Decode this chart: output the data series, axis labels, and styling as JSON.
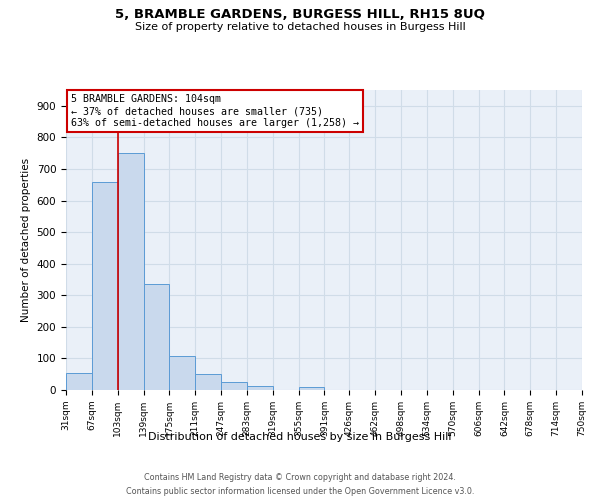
{
  "title": "5, BRAMBLE GARDENS, BURGESS HILL, RH15 8UQ",
  "subtitle": "Size of property relative to detached houses in Burgess Hill",
  "xlabel": "Distribution of detached houses by size in Burgess Hill",
  "ylabel": "Number of detached properties",
  "bar_heights": [
    55,
    660,
    750,
    335,
    108,
    52,
    25,
    12,
    0,
    8,
    0,
    0,
    0,
    0,
    0,
    0,
    0,
    0,
    0,
    0
  ],
  "bin_edges": [
    31,
    67,
    103,
    139,
    175,
    211,
    247,
    283,
    319,
    355,
    391,
    426,
    462,
    498,
    534,
    570,
    606,
    642,
    678,
    714,
    750
  ],
  "tick_labels": [
    "31sqm",
    "67sqm",
    "103sqm",
    "139sqm",
    "175sqm",
    "211sqm",
    "247sqm",
    "283sqm",
    "319sqm",
    "355sqm",
    "391sqm",
    "426sqm",
    "462sqm",
    "498sqm",
    "534sqm",
    "570sqm",
    "606sqm",
    "642sqm",
    "678sqm",
    "714sqm",
    "750sqm"
  ],
  "bar_color": "#c9d9ed",
  "bar_edge_color": "#5b9bd5",
  "property_line_x": 103,
  "ylim": [
    0,
    950
  ],
  "yticks": [
    0,
    100,
    200,
    300,
    400,
    500,
    600,
    700,
    800,
    900
  ],
  "annotation_title": "5 BRAMBLE GARDENS: 104sqm",
  "annotation_line1": "← 37% of detached houses are smaller (735)",
  "annotation_line2": "63% of semi-detached houses are larger (1,258) →",
  "annotation_box_color": "#ffffff",
  "annotation_box_edge_color": "#cc0000",
  "grid_color": "#d0dce8",
  "background_color": "#eaf0f8",
  "footnote1": "Contains HM Land Registry data © Crown copyright and database right 2024.",
  "footnote2": "Contains public sector information licensed under the Open Government Licence v3.0."
}
